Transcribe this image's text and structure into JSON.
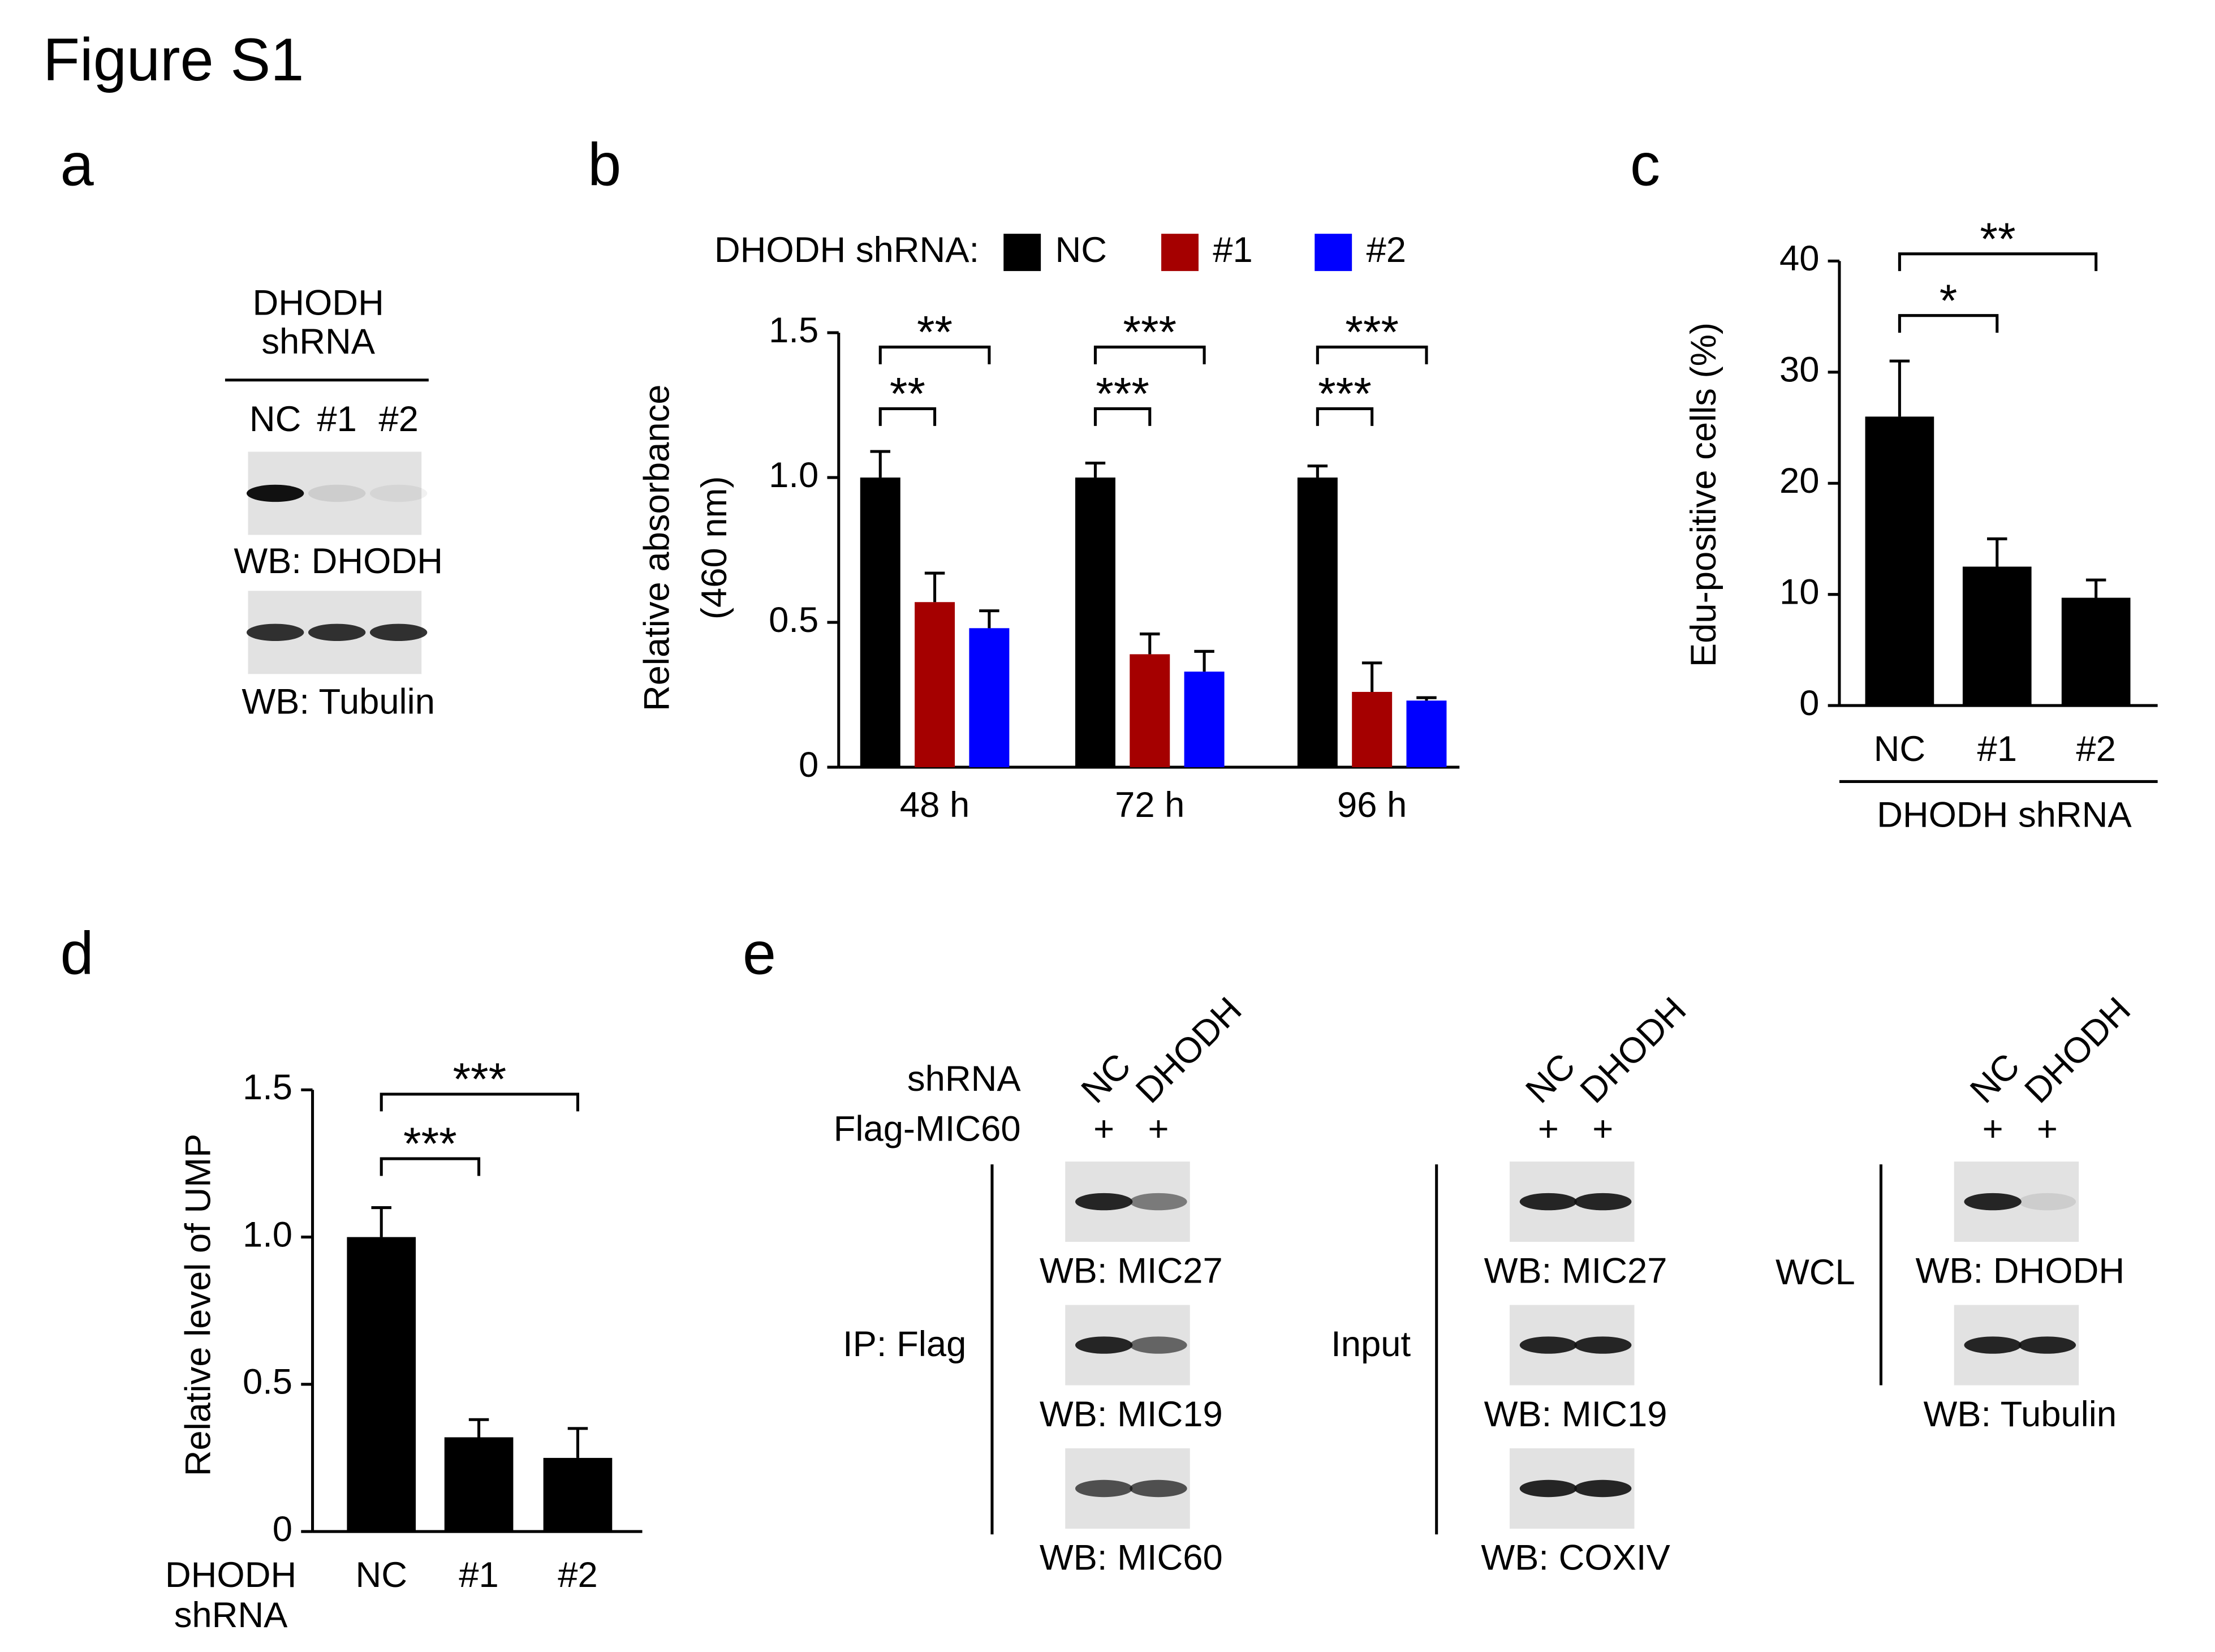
{
  "title": "Figure S1",
  "panel_labels": [
    "a",
    "b",
    "c",
    "d",
    "e"
  ],
  "panel_a": {
    "header": [
      "DHODH",
      "shRNA"
    ],
    "lanes": [
      "NC",
      "#1",
      "#2"
    ],
    "blots": [
      "WB: DHODH",
      "WB: Tubulin"
    ]
  },
  "chart_data": [
    {
      "type": "bar",
      "legend_title": "DHODH shRNA:",
      "ylabel": [
        "Relative absorbance",
        "(460 nm)"
      ],
      "categories": [
        "48 h",
        "72 h",
        "96 h"
      ],
      "series": [
        {
          "name": "NC",
          "color": "#000000",
          "values": [
            1.0,
            1.0,
            1.0
          ],
          "errors": [
            0.09,
            0.05,
            0.04
          ]
        },
        {
          "name": "#1",
          "color": "#a50000",
          "values": [
            0.57,
            0.39,
            0.26
          ],
          "errors": [
            0.1,
            0.07,
            0.1
          ]
        },
        {
          "name": "#2",
          "color": "#0000ff",
          "values": [
            0.48,
            0.33,
            0.23
          ],
          "errors": [
            0.06,
            0.07,
            0.01
          ]
        }
      ],
      "ylim": [
        0,
        1.5
      ],
      "yticks": [
        0,
        0.5,
        {
          "value": 1,
          "label": "1.0"
        },
        1.5
      ],
      "significance": [
        [
          "**",
          "**"
        ],
        [
          "***",
          "***"
        ],
        [
          "***",
          "***"
        ]
      ]
    },
    {
      "type": "bar",
      "ylabel": "Edu-positive cells (%)",
      "xlabel": "DHODH shRNA",
      "categories": [
        "NC",
        "#1",
        "#2"
      ],
      "values": [
        26,
        12.5,
        9.7
      ],
      "errors": [
        5,
        2.5,
        1.6
      ],
      "color": "#000000",
      "ylim": [
        0,
        40
      ],
      "yticks": [
        0,
        10,
        20,
        30,
        40
      ],
      "significance": [
        "*",
        "**"
      ]
    },
    {
      "type": "bar",
      "ylabel": "Relative level of UMP",
      "xlabel": [
        "DHODH",
        "shRNA"
      ],
      "categories": [
        "NC",
        "#1",
        "#2"
      ],
      "values": [
        1.0,
        0.32,
        0.25
      ],
      "errors": [
        0.1,
        0.06,
        0.1
      ],
      "color": "#000000",
      "ylim": [
        0,
        1.5
      ],
      "yticks": [
        0,
        0.5,
        {
          "value": 1,
          "label": "1.0"
        },
        1.5
      ],
      "significance": [
        "***",
        "***"
      ]
    }
  ],
  "panel_e": {
    "row_labels": [
      "shRNA",
      "Flag-MIC60"
    ],
    "mark": "+",
    "groups": [
      {
        "label": "IP: Flag",
        "lanes": [
          "NC",
          "DHODH"
        ],
        "blots": [
          "WB: MIC27",
          "WB: MIC19",
          "WB: MIC60"
        ]
      },
      {
        "label": "Input",
        "lanes": [
          "NC",
          "DHODH"
        ],
        "blots": [
          "WB: MIC27",
          "WB: MIC19",
          "WB: COXIV"
        ]
      },
      {
        "label": "WCL",
        "lanes": [
          "NC",
          "DHODH"
        ],
        "blots": [
          "WB: DHODH",
          "WB: Tubulin"
        ]
      }
    ]
  }
}
